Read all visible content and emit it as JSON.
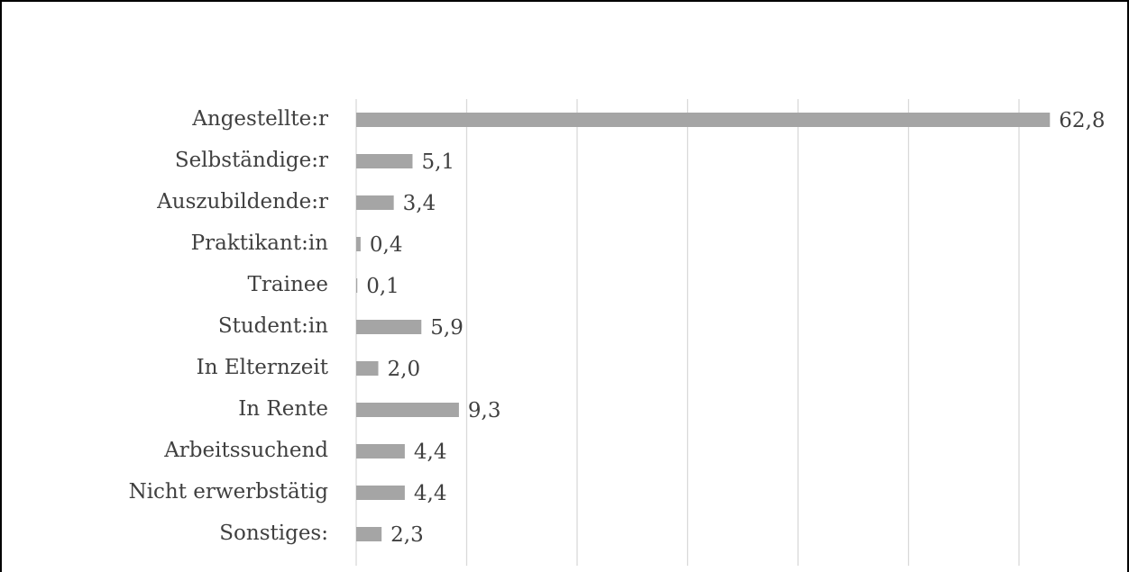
{
  "chart_data": {
    "type": "barh",
    "categories": [
      "Angestellte:r",
      "Selbständige:r",
      "Auszubildende:r",
      "Praktikant:in",
      "Trainee",
      "Student:in",
      "In Elternzeit",
      "In Rente",
      "Arbeitssuchend",
      "Nicht erwerbstätig",
      "Sonstiges:"
    ],
    "values": [
      62.8,
      5.1,
      3.4,
      0.4,
      0.1,
      5.9,
      2.0,
      9.3,
      4.4,
      4.4,
      2.3
    ],
    "value_labels": [
      "62,8",
      "5,1",
      "3,4",
      "0,4",
      "0,1",
      "5,9",
      "2,0",
      "9,3",
      "4,4",
      "4,4",
      "2,3"
    ],
    "color": "#a5a5a5",
    "xlim": [
      0,
      70
    ],
    "xticks": [
      0,
      10,
      20,
      30,
      40,
      50,
      60
    ],
    "grid": true
  }
}
